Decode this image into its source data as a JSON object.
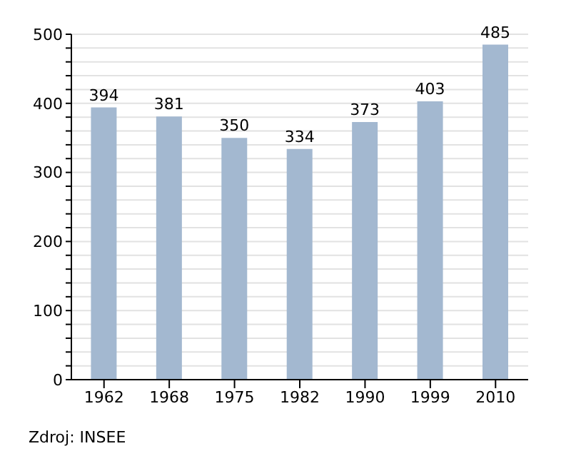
{
  "chart_data": {
    "type": "bar",
    "categories": [
      "1962",
      "1968",
      "1975",
      "1982",
      "1990",
      "1999",
      "2010"
    ],
    "values": [
      394,
      381,
      350,
      334,
      373,
      403,
      485
    ],
    "color": "#a3b8d0",
    "ylim": [
      0,
      500
    ],
    "yticks": [
      0,
      {
        "value": 20,
        "label": null
      },
      {
        "value": 40,
        "label": null
      },
      {
        "value": 60,
        "label": null
      },
      {
        "value": 80,
        "label": null
      },
      100,
      {
        "value": 120,
        "label": null
      },
      {
        "value": 140,
        "label": null
      },
      {
        "value": 160,
        "label": null
      },
      {
        "value": 180,
        "label": null
      },
      200,
      {
        "value": 220,
        "label": null
      },
      {
        "value": 240,
        "label": null
      },
      {
        "value": 260,
        "label": null
      },
      {
        "value": 280,
        "label": null
      },
      300,
      {
        "value": 320,
        "label": null
      },
      {
        "value": 340,
        "label": null
      },
      {
        "value": 360,
        "label": null
      },
      {
        "value": 380,
        "label": null
      },
      400,
      {
        "value": 420,
        "label": null
      },
      {
        "value": 440,
        "label": null
      },
      {
        "value": 460,
        "label": null
      },
      {
        "value": 480,
        "label": null
      },
      500
    ],
    "grid": "y",
    "data_labels": true,
    "annotations": [
      "Zdroj: INSEE"
    ]
  }
}
